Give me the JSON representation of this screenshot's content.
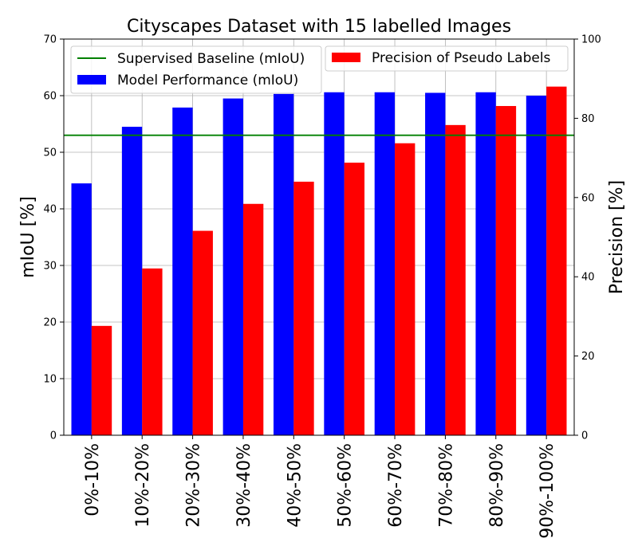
{
  "chart_data": {
    "type": "bar",
    "title": "Cityscapes Dataset with 15 labelled Images",
    "xlabel": "",
    "ylabel": "mIoU [%]",
    "y2label": "Precision [%]",
    "ylim": [
      0,
      70
    ],
    "y2lim": [
      0,
      100
    ],
    "yticks": [
      "0",
      "10",
      "20",
      "30",
      "40",
      "50",
      "60",
      "70"
    ],
    "y2ticks": [
      "0",
      "20",
      "40",
      "60",
      "80",
      "100"
    ],
    "categories": [
      "0%-10%",
      "10%-20%",
      "20%-30%",
      "30%-40%",
      "40%-50%",
      "50%-60%",
      "60%-70%",
      "70%-80%",
      "80%-90%",
      "90%-100%"
    ],
    "series": [
      {
        "name": "Model Performance (mIoU)",
        "axis": "left",
        "color": "#0000ff",
        "values": [
          44.5,
          54.5,
          57.9,
          59.5,
          60.3,
          60.6,
          60.6,
          60.5,
          60.6,
          60.0
        ]
      },
      {
        "name": "Precision of Pseudo Labels",
        "axis": "right",
        "color": "#ff0000",
        "values": [
          27.6,
          42.1,
          51.6,
          58.4,
          64.0,
          68.8,
          73.7,
          78.3,
          83.1,
          88.0
        ]
      }
    ],
    "reference_line": {
      "name": "Supervised Baseline (mIoU)",
      "axis": "left",
      "value": 53.0,
      "color": "#008000"
    },
    "grid": true,
    "legend_position": "top"
  }
}
